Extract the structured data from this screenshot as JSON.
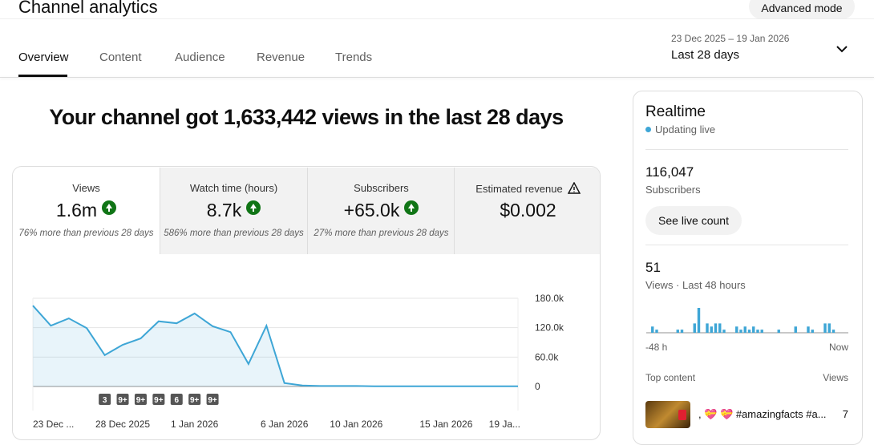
{
  "header": {
    "title": "Channel analytics",
    "advanced_mode": "Advanced mode"
  },
  "tabs": [
    "Overview",
    "Content",
    "Audience",
    "Revenue",
    "Trends"
  ],
  "date_range": {
    "dates": "23 Dec 2025 – 19 Jan 2026",
    "label": "Last 28 days"
  },
  "headline": "Your channel got 1,633,442 views in the last 28 days",
  "metrics": [
    {
      "label": "Views",
      "value": "1.6m",
      "note": "76% more than previous 28 days"
    },
    {
      "label": "Watch time (hours)",
      "value": "8.7k",
      "note": "586% more than previous 28 days"
    },
    {
      "label": "Subscribers",
      "value": "+65.0k",
      "note": "27% more than previous 28 days"
    },
    {
      "label": "Estimated revenue",
      "value": "$0.002"
    }
  ],
  "chart_data": [
    {
      "type": "line",
      "categories": [
        "23 Dec ...",
        null,
        null,
        null,
        null,
        "28 Dec 2025",
        null,
        null,
        null,
        "1 Jan 2026",
        null,
        null,
        null,
        null,
        "6 Jan 2026",
        null,
        null,
        null,
        "10 Jan 2026",
        null,
        null,
        null,
        null,
        "15 Jan 2026",
        null,
        null,
        null,
        "19 Ja..."
      ],
      "annotations": [
        null,
        null,
        null,
        null,
        "3",
        "9+",
        "9+",
        "9+",
        "6",
        "9+",
        "9+",
        null,
        null,
        null,
        null,
        null,
        null,
        null,
        null,
        null,
        null,
        null,
        null,
        null,
        null,
        null,
        null,
        null
      ],
      "values": [
        165000,
        124000,
        139000,
        119000,
        64000,
        85000,
        98000,
        133000,
        129000,
        149000,
        123000,
        111000,
        46000,
        124000,
        7000,
        2000,
        1000,
        1000,
        1000,
        500,
        500,
        500,
        500,
        500,
        500,
        500,
        500,
        500
      ],
      "color": "#3ea6d6",
      "ylim": [
        0,
        180000
      ],
      "yticks": [
        0,
        {
          "value": 60000,
          "label": "60.0k"
        },
        {
          "value": 120000,
          "label": "120.0k"
        },
        {
          "value": 180000,
          "label": "180.0k"
        }
      ],
      "grid": true
    },
    {
      "type": "bar",
      "categories": [
        "-48 h",
        null,
        null,
        null,
        null,
        null,
        null,
        null,
        null,
        null,
        null,
        null,
        null,
        null,
        null,
        null,
        null,
        null,
        null,
        null,
        null,
        null,
        null,
        null,
        null,
        null,
        null,
        null,
        null,
        null,
        null,
        null,
        null,
        null,
        null,
        null,
        null,
        null,
        null,
        null,
        null,
        null,
        null,
        null,
        null,
        null,
        null,
        "Now"
      ],
      "values": [
        0,
        2,
        1,
        0,
        0,
        0,
        0,
        1,
        1,
        0,
        0,
        3,
        8,
        0,
        3,
        2,
        3,
        3,
        1,
        0,
        0,
        2,
        1,
        2,
        1,
        2,
        1,
        1,
        0,
        0,
        0,
        1,
        0,
        0,
        0,
        2,
        0,
        0,
        2,
        1,
        0,
        0,
        3,
        3,
        1,
        0,
        0,
        0
      ],
      "color": "#3ea6d6"
    }
  ],
  "realtime": {
    "title": "Realtime",
    "status": "Updating live",
    "subscribers": {
      "value": "116,047",
      "label": "Subscribers",
      "button": "See live count"
    },
    "views": {
      "value": "51",
      "label": "Views · Last 48 hours"
    },
    "top_content": {
      "header": "Top content",
      "views_header": "Views",
      "items": [
        {
          "title": ", 💝 💝 #amazingfacts #a...",
          "views": "7"
        }
      ]
    }
  }
}
